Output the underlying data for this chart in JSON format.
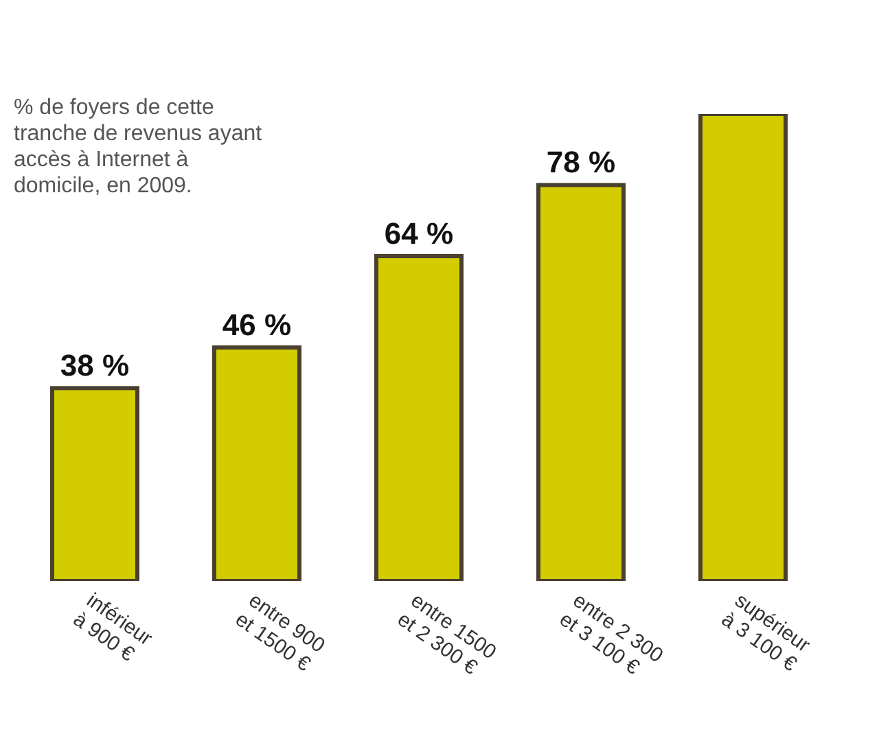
{
  "chart_data": {
    "type": "bar",
    "title": "% de foyers de cette tranche de revenus ayant accès à Internet à domicile, en 2009.",
    "categories": [
      "inférieur\nà 900 €",
      "entre 900\net 1500 €",
      "entre 1500\net 2 300 €",
      "entre 2 300\net 3 100 €",
      "supérieur\nà 3 100 €"
    ],
    "values": [
      38,
      46,
      64,
      78,
      92
    ],
    "value_labels": [
      "38 %",
      "46 %",
      "64 %",
      "78 %",
      null
    ],
    "color": "#d2cc00"
  }
}
